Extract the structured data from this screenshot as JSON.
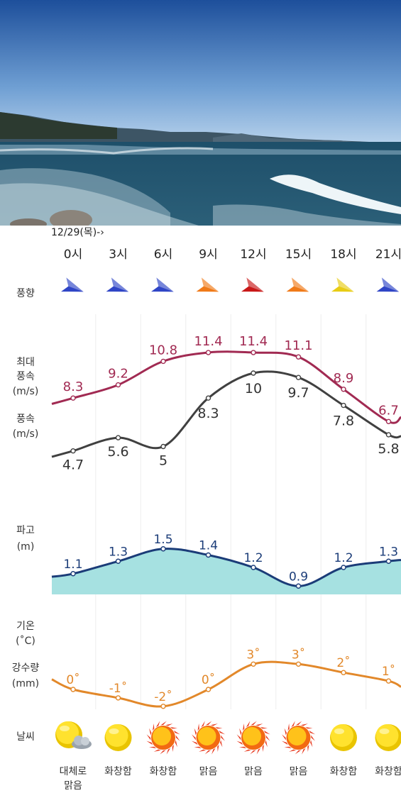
{
  "date_label": "12/29(목)-›",
  "row_labels": {
    "wind_dir": [
      "풍향"
    ],
    "max_wind": [
      "최대",
      "풍속",
      "(m/s)"
    ],
    "wind": [
      "풍속",
      "(m/s)"
    ],
    "wave": [
      "파고",
      "(m)"
    ],
    "temp": [
      "기온",
      "(˚C)"
    ],
    "rain": [
      "강수량",
      "(mm)"
    ],
    "weather": [
      "날씨"
    ]
  },
  "chart_data": {
    "type": "line",
    "x": [
      "0시",
      "3시",
      "6시",
      "9시",
      "12시",
      "15시",
      "18시",
      "21시"
    ],
    "wind_direction_colors": [
      "#2f45c6",
      "#2f45c6",
      "#2f45c6",
      "#f07a18",
      "#c81818",
      "#f07a18",
      "#e8cc14",
      "#2f45c6"
    ],
    "series": [
      {
        "name": "최대풍속",
        "values": [
          8.3,
          9.2,
          10.8,
          11.4,
          11.4,
          11.1,
          8.9,
          6.7
        ],
        "color": "#a12a52"
      },
      {
        "name": "풍속",
        "values": [
          4.7,
          5.6,
          5,
          8.3,
          10,
          9.7,
          7.8,
          5.8
        ],
        "color": "#404040"
      },
      {
        "name": "파고",
        "values": [
          1.1,
          1.3,
          1.5,
          1.4,
          1.2,
          0.9,
          1.2,
          1.3
        ],
        "color": "#1b3c78",
        "fill": "#a6e1e1"
      },
      {
        "name": "기온",
        "values": [
          0,
          -1,
          -2,
          0,
          3,
          3,
          2,
          1
        ],
        "color": "#e2882a"
      }
    ],
    "weather": [
      {
        "label": [
          "대체로",
          "맑음"
        ],
        "icon": "sun-with-cloud-icon"
      },
      {
        "label": [
          "화창함"
        ],
        "icon": "sun-icon"
      },
      {
        "label": [
          "화창함"
        ],
        "icon": "sun-rays-icon"
      },
      {
        "label": [
          "맑음"
        ],
        "icon": "sun-rays-icon"
      },
      {
        "label": [
          "맑음"
        ],
        "icon": "sun-rays-icon"
      },
      {
        "label": [
          "맑음"
        ],
        "icon": "sun-rays-icon"
      },
      {
        "label": [
          "화창함"
        ],
        "icon": "sun-icon"
      },
      {
        "label": [
          "화창함"
        ],
        "icon": "sun-icon"
      }
    ]
  }
}
